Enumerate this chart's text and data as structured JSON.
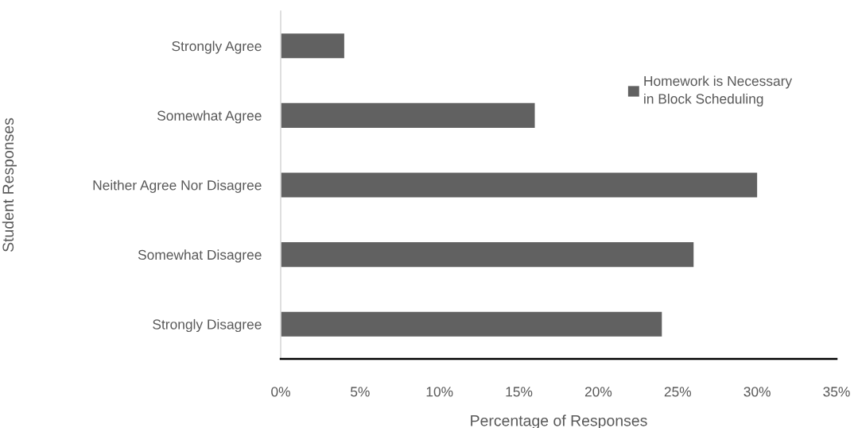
{
  "chart_data": {
    "type": "bar",
    "orientation": "horizontal",
    "xlabel": "Percentage of Responses",
    "ylabel": "Student Responses",
    "categories": [
      "Strongly Agree",
      "Somewhat Agree",
      "Neither Agree Nor Disagree",
      "Somewhat Disagree",
      "Strongly Disagree"
    ],
    "series": [
      {
        "name": "Homework is Necessary in Block Scheduling",
        "color": "#616161",
        "values": [
          4,
          16,
          30,
          26,
          24
        ]
      }
    ],
    "xlim": [
      0,
      35
    ],
    "xticks": [
      {
        "value": 0,
        "label": "0%"
      },
      {
        "value": 5,
        "label": "5%"
      },
      {
        "value": 10,
        "label": "10%"
      },
      {
        "value": 15,
        "label": "15%"
      },
      {
        "value": 20,
        "label": "20%"
      },
      {
        "value": 25,
        "label": "25%"
      },
      {
        "value": 30,
        "label": "30%"
      },
      {
        "value": 35,
        "label": "35%"
      }
    ],
    "legend": "top right"
  }
}
